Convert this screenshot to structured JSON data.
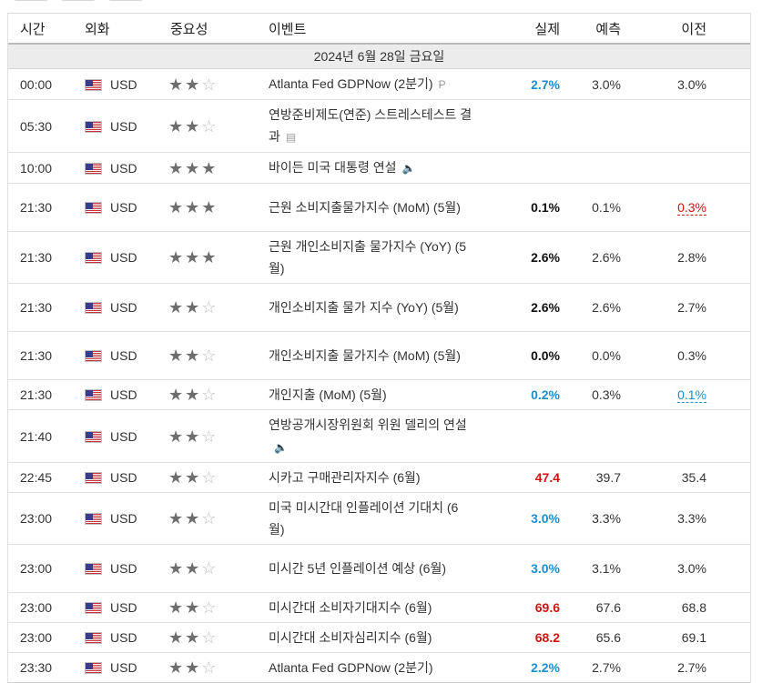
{
  "headers": {
    "time": "시간",
    "currency": "외화",
    "importance": "중요성",
    "event": "이벤트",
    "actual": "실제",
    "forecast": "예측",
    "previous": "이전"
  },
  "date_label": "2024년 6월 28일 금요일",
  "colors": {
    "blue": "#1f8ccb",
    "red": "#d01212",
    "star_on": "#6e6e6e",
    "star_off": "#bdbdbd"
  },
  "rows": [
    {
      "time": "00:00",
      "currency": "USD",
      "stars": 2,
      "event": "Atlanta Fed GDPNow (2분기)",
      "icon": "preliminary-icon",
      "icon_glyph": "P",
      "actual": "2.7%",
      "actual_color": "blue",
      "forecast": "3.0%",
      "previous": "3.0%",
      "prev_style": ""
    },
    {
      "time": "05:30",
      "currency": "USD",
      "stars": 2,
      "event": "연방준비제도(연준) 스트레스테스트 결과",
      "icon": "document-icon",
      "icon_glyph": "▤",
      "actual": "",
      "actual_color": "",
      "forecast": "",
      "previous": "",
      "prev_style": ""
    },
    {
      "time": "10:00",
      "currency": "USD",
      "stars": 3,
      "event": "바이든 미국 대통령 연설",
      "icon": "speaker-icon",
      "icon_glyph": "🔈",
      "actual": "",
      "actual_color": "",
      "forecast": "",
      "previous": "",
      "prev_style": ""
    },
    {
      "time": "21:30",
      "currency": "USD",
      "stars": 3,
      "event": "근원 소비지출물가지수 (MoM) (5월)",
      "icon": "",
      "icon_glyph": "",
      "actual": "0.1%",
      "actual_color": "black",
      "forecast": "0.1%",
      "previous": "0.3%",
      "prev_style": "red"
    },
    {
      "time": "21:30",
      "currency": "USD",
      "stars": 3,
      "event": "근원 개인소비지출 물가지수 (YoY) (5월)",
      "icon": "",
      "icon_glyph": "",
      "actual": "2.6%",
      "actual_color": "black",
      "forecast": "2.6%",
      "previous": "2.8%",
      "prev_style": ""
    },
    {
      "time": "21:30",
      "currency": "USD",
      "stars": 2,
      "event": "개인소비지출 물가 지수 (YoY) (5월)",
      "icon": "",
      "icon_glyph": "",
      "actual": "2.6%",
      "actual_color": "black",
      "forecast": "2.6%",
      "previous": "2.7%",
      "prev_style": ""
    },
    {
      "time": "21:30",
      "currency": "USD",
      "stars": 2,
      "event": "개인소비지출 물가지수 (MoM) (5월)",
      "icon": "",
      "icon_glyph": "",
      "actual": "0.0%",
      "actual_color": "black",
      "forecast": "0.0%",
      "previous": "0.3%",
      "prev_style": ""
    },
    {
      "time": "21:30",
      "currency": "USD",
      "stars": 2,
      "event": "개인지출 (MoM) (5월)",
      "icon": "",
      "icon_glyph": "",
      "actual": "0.2%",
      "actual_color": "blue",
      "forecast": "0.3%",
      "previous": "0.1%",
      "prev_style": "blue"
    },
    {
      "time": "21:40",
      "currency": "USD",
      "stars": 2,
      "event": "연방공개시장위원회 위원 델리의 연설",
      "icon": "speaker-icon",
      "icon_glyph": "🔈",
      "actual": "",
      "actual_color": "",
      "forecast": "",
      "previous": "",
      "prev_style": ""
    },
    {
      "time": "22:45",
      "currency": "USD",
      "stars": 2,
      "event": "시카고 구매관리자지수 (6월)",
      "icon": "",
      "icon_glyph": "",
      "actual": "47.4",
      "actual_color": "red",
      "forecast": "39.7",
      "previous": "35.4",
      "prev_style": ""
    },
    {
      "time": "23:00",
      "currency": "USD",
      "stars": 2,
      "event": "미국 미시간대 인플레이션 기대치 (6월)",
      "icon": "",
      "icon_glyph": "",
      "actual": "3.0%",
      "actual_color": "blue",
      "forecast": "3.3%",
      "previous": "3.3%",
      "prev_style": ""
    },
    {
      "time": "23:00",
      "currency": "USD",
      "stars": 2,
      "event": "미시간 5년 인플레이션 예상 (6월)",
      "icon": "",
      "icon_glyph": "",
      "actual": "3.0%",
      "actual_color": "blue",
      "forecast": "3.1%",
      "previous": "3.0%",
      "prev_style": ""
    },
    {
      "time": "23:00",
      "currency": "USD",
      "stars": 2,
      "event": "미시간대 소비자기대지수 (6월)",
      "icon": "",
      "icon_glyph": "",
      "actual": "69.6",
      "actual_color": "red",
      "forecast": "67.6",
      "previous": "68.8",
      "prev_style": ""
    },
    {
      "time": "23:00",
      "currency": "USD",
      "stars": 2,
      "event": "미시간대 소비자심리지수 (6월)",
      "icon": "",
      "icon_glyph": "",
      "actual": "68.2",
      "actual_color": "red",
      "forecast": "65.6",
      "previous": "69.1",
      "prev_style": ""
    },
    {
      "time": "23:30",
      "currency": "USD",
      "stars": 2,
      "event": "Atlanta Fed GDPNow (2분기)",
      "icon": "",
      "icon_glyph": "",
      "actual": "2.2%",
      "actual_color": "blue",
      "forecast": "2.7%",
      "previous": "2.7%",
      "prev_style": ""
    }
  ]
}
